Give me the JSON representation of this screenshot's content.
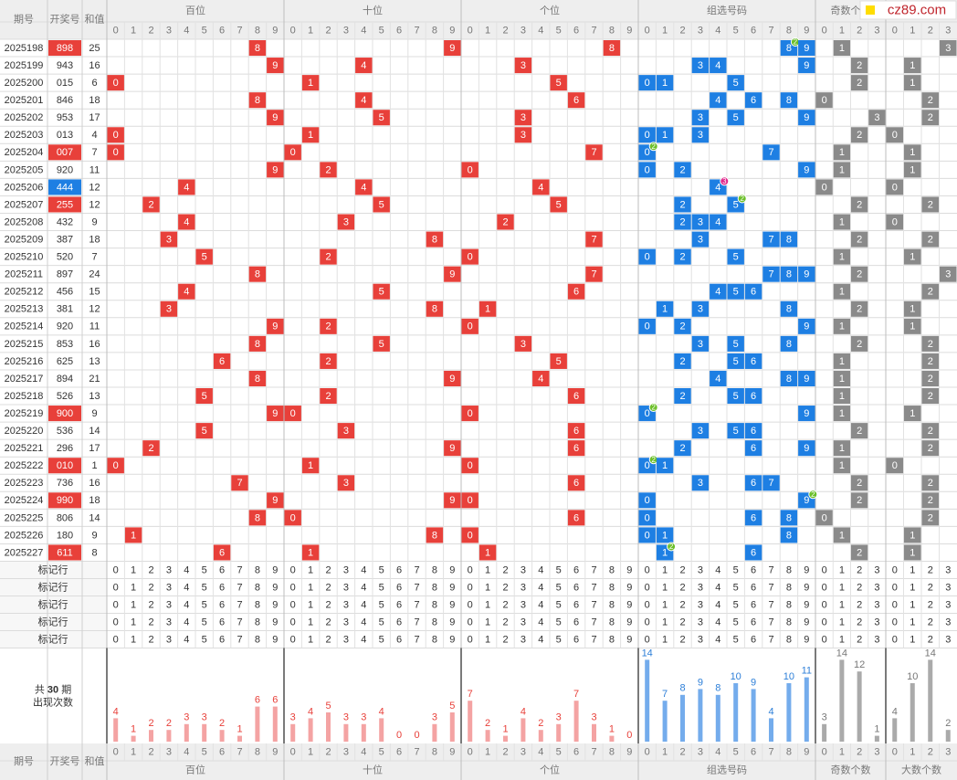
{
  "columns": [
    "期号",
    "开奖号",
    "和值"
  ],
  "groups": [
    "百位",
    "十位",
    "个位",
    "组选号码",
    "奇数个数",
    "大数个数"
  ],
  "digits": [
    0,
    1,
    2,
    3,
    4,
    5,
    6,
    7,
    8,
    9
  ],
  "mark_row_label": "标记行",
  "logo": "cz89.com",
  "summary": {
    "prefix": "共",
    "periods": 30,
    "unit": "期",
    "caption": "出现次数"
  },
  "draws": [
    {
      "period": "2025198",
      "number": "898",
      "sum": 25
    },
    {
      "period": "2025199",
      "number": "943",
      "sum": 16
    },
    {
      "period": "2025200",
      "number": "015",
      "sum": 6
    },
    {
      "period": "2025201",
      "number": "846",
      "sum": 18
    },
    {
      "period": "2025202",
      "number": "953",
      "sum": 17
    },
    {
      "period": "2025203",
      "number": "013",
      "sum": 4
    },
    {
      "period": "2025204",
      "number": "007",
      "sum": 7
    },
    {
      "period": "2025205",
      "number": "920",
      "sum": 11
    },
    {
      "period": "2025206",
      "number": "444",
      "sum": 12
    },
    {
      "period": "2025207",
      "number": "255",
      "sum": 12
    },
    {
      "period": "2025208",
      "number": "432",
      "sum": 9
    },
    {
      "period": "2025209",
      "number": "387",
      "sum": 18
    },
    {
      "period": "2025210",
      "number": "520",
      "sum": 7
    },
    {
      "period": "2025211",
      "number": "897",
      "sum": 24
    },
    {
      "period": "2025212",
      "number": "456",
      "sum": 15
    },
    {
      "period": "2025213",
      "number": "381",
      "sum": 12
    },
    {
      "period": "2025214",
      "number": "920",
      "sum": 11
    },
    {
      "period": "2025215",
      "number": "853",
      "sum": 16
    },
    {
      "period": "2025216",
      "number": "625",
      "sum": 13
    },
    {
      "period": "2025217",
      "number": "894",
      "sum": 21
    },
    {
      "period": "2025218",
      "number": "526",
      "sum": 13
    },
    {
      "period": "2025219",
      "number": "900",
      "sum": 9
    },
    {
      "period": "2025220",
      "number": "536",
      "sum": 14
    },
    {
      "period": "2025221",
      "number": "296",
      "sum": 17
    },
    {
      "period": "2025222",
      "number": "010",
      "sum": 1
    },
    {
      "period": "2025223",
      "number": "736",
      "sum": 16
    },
    {
      "period": "2025224",
      "number": "990",
      "sum": 18
    },
    {
      "period": "2025225",
      "number": "806",
      "sum": 14
    },
    {
      "period": "2025226",
      "number": "180",
      "sum": 9
    },
    {
      "period": "2025227",
      "number": "611",
      "sum": 8
    }
  ],
  "stats": [
    [
      4,
      1,
      2,
      2,
      3,
      3,
      2,
      1,
      6,
      6
    ],
    [
      3,
      4,
      5,
      3,
      3,
      4,
      0,
      0,
      3,
      5
    ],
    [
      7,
      2,
      1,
      4,
      2,
      3,
      7,
      3,
      1,
      0
    ],
    [
      14,
      7,
      8,
      9,
      8,
      10,
      9,
      4,
      10,
      11
    ],
    [
      3,
      14,
      12,
      1
    ],
    [
      4,
      10,
      14,
      2
    ]
  ]
}
